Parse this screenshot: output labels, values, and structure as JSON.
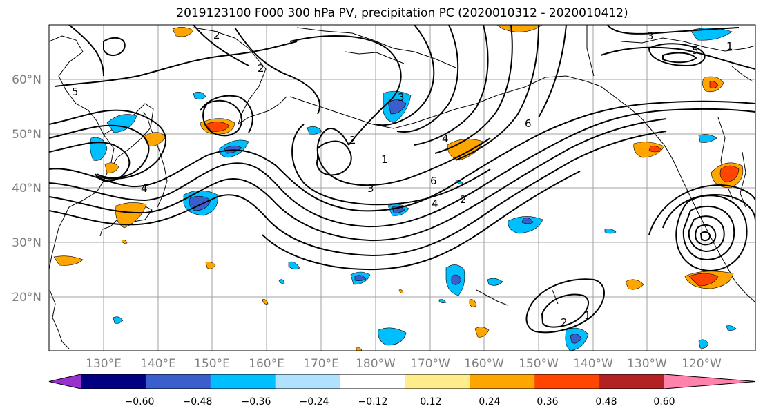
{
  "title": "2019123100 F000 300 hPa PV, precipitation PC (2020010312 - 2020010412)",
  "map": {
    "lat_labels": [
      "60°N",
      "50°N",
      "40°N",
      "30°N",
      "20°N"
    ],
    "lon_labels": [
      "130°E",
      "140°E",
      "150°E",
      "160°E",
      "170°E",
      "180°W",
      "170°W",
      "160°W",
      "150°W",
      "140°W",
      "130°W",
      "120°W"
    ],
    "contour_labels": [
      "5",
      "2",
      "3",
      "5",
      "2",
      "1",
      "3",
      "4",
      "6",
      "1",
      "2",
      "3",
      "4",
      "6",
      "4",
      "2",
      "2",
      "1"
    ]
  },
  "colorbar": {
    "colors": [
      "#9932cc",
      "#000080",
      "#3a5fcd",
      "#00bfff",
      "#b0e2ff",
      "#ffffff",
      "#ffec8b",
      "#ffa500",
      "#ff4500",
      "#b22222",
      "#ff82ab"
    ],
    "tick_labels": [
      "−0.60",
      "−0.48",
      "−0.36",
      "−0.24",
      "−0.12",
      "0.12",
      "0.24",
      "0.36",
      "0.48",
      "0.60"
    ]
  }
}
